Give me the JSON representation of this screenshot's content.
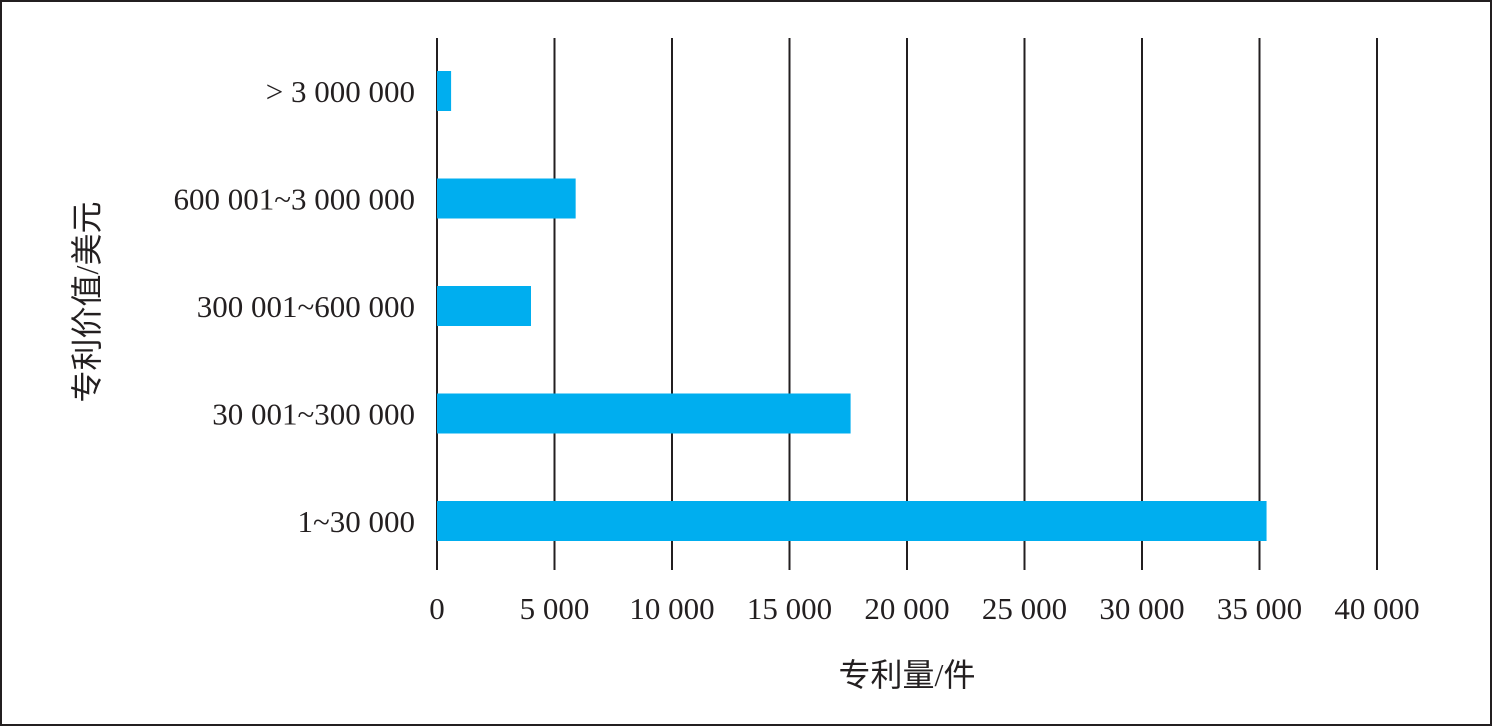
{
  "chart_data": {
    "type": "bar",
    "orientation": "horizontal",
    "categories": [
      "> 3 000 000",
      "600 001~3 000 000",
      "300 001~600 000",
      "30 001~300 000",
      "1~30 000"
    ],
    "values": [
      600,
      5900,
      4000,
      17600,
      35300
    ],
    "xlabel": "专利量/件",
    "ylabel": "专利价值/美元",
    "xlim": [
      0,
      40000
    ],
    "x_ticks": [
      0,
      5000,
      10000,
      15000,
      20000,
      25000,
      30000,
      35000,
      40000
    ],
    "x_tick_labels": [
      "0",
      "5 000",
      "10 000",
      "15 000",
      "20 000",
      "25 000",
      "30 000",
      "35 000",
      "40 000"
    ],
    "grid": "vertical",
    "bar_color": "#00aeef",
    "grid_color": "#231f20",
    "text_color": "#231f20"
  }
}
